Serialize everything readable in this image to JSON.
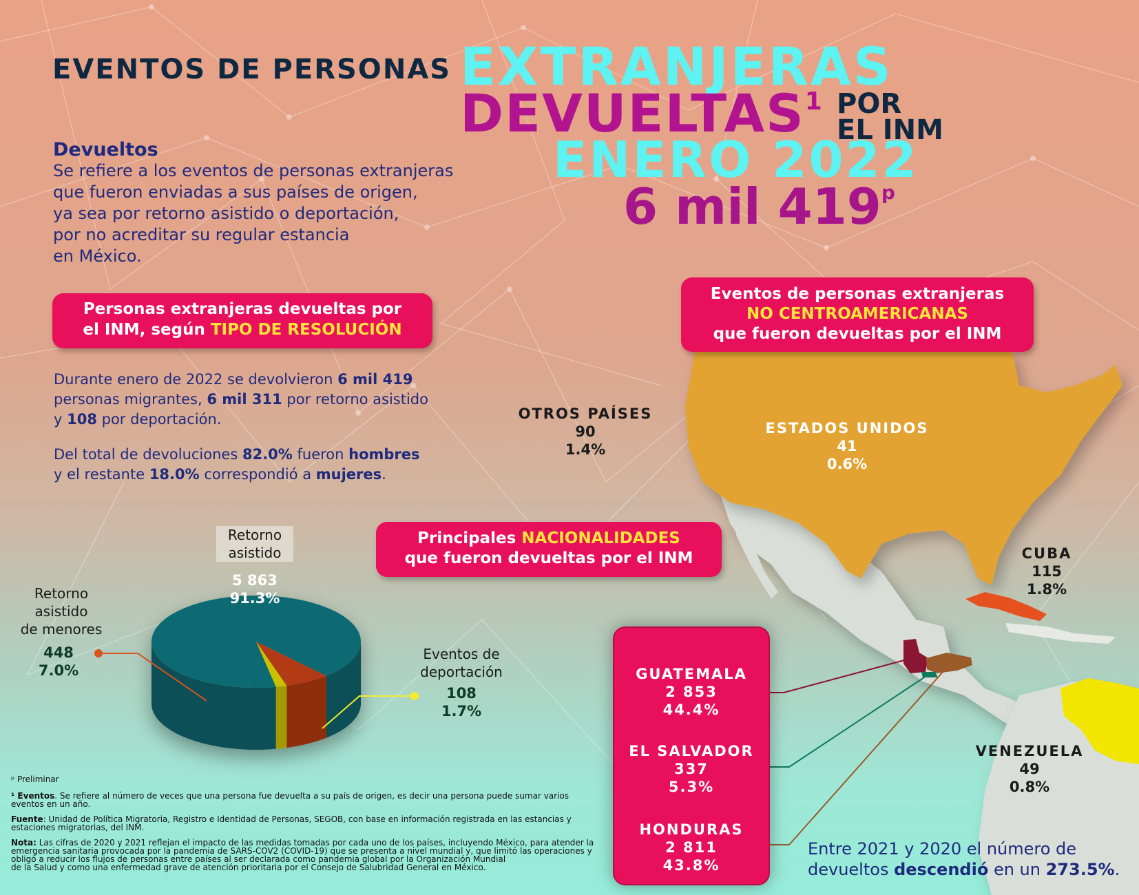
{
  "title": {
    "line1": "EVENTOS DE PERSONAS",
    "line2": "EXTRANJERAS",
    "line3": "DEVUELTAS",
    "line3_sup": "1",
    "por": "POR",
    "el_inm": "EL INM",
    "line4": "ENERO 2022",
    "total": "6 mil 419",
    "total_sup": "p"
  },
  "definition": {
    "heading": "Devueltos",
    "lines": [
      "Se refiere a los eventos de personas extranjeras",
      "que fueron enviadas a sus países de origen,",
      "ya sea por retorno asistido o deportación,",
      "por no acreditar su regular estancia",
      "en México."
    ]
  },
  "pill_resolution": {
    "line1": "Personas extranjeras devueltas por",
    "line2_a": "el INM, según ",
    "line2_b": "TIPO DE RESOLUCIÓN"
  },
  "summary": {
    "p1": [
      "Durante enero de 2022 se devolvieron ",
      "6 mil 419"
    ],
    "p2": [
      "personas migrantes, ",
      "6 mil 311",
      " por retorno asistido"
    ],
    "p3": [
      "y ",
      "108",
      " por deportación."
    ],
    "p4": [
      "Del total de devoluciones ",
      "82.0%",
      " fueron ",
      "hombres"
    ],
    "p5": [
      "y el restante ",
      "18.0%",
      " correspondió a ",
      "mujeres",
      "."
    ]
  },
  "pill_nonca": {
    "line1": "Eventos de personas extranjeras",
    "line2": "NO CENTROAMERICANAS",
    "line3": "que fueron devueltas por el INM"
  },
  "pill_nat": {
    "line1_a": "Principales ",
    "line1_b": "NACIONALIDADES",
    "line2": "que fueron devueltas por el INM"
  },
  "pie_labels": {
    "retorno": {
      "label1": "Retorno",
      "label2": "asistido",
      "value": "5 863",
      "pct": "91.3%"
    },
    "menores": {
      "label1": "Retorno",
      "label2": "asistido",
      "label3": "de menores",
      "value": "448",
      "pct": "7.0%"
    },
    "deport": {
      "label1": "Eventos de",
      "label2": "deportación",
      "value": "108",
      "pct": "1.7%"
    }
  },
  "map_labels": {
    "otros": {
      "name": "OTROS PAÍSES",
      "value": "90",
      "pct": "1.4%"
    },
    "eu": {
      "name": "ESTADOS UNIDOS",
      "value": "41",
      "pct": "0.6%"
    },
    "cuba": {
      "name": "CUBA",
      "value": "115",
      "pct": "1.8%"
    },
    "venezuela": {
      "name": "VENEZUELA",
      "value": "49",
      "pct": "0.8%"
    }
  },
  "ca_box": {
    "guatemala": {
      "name": "GUATEMALA",
      "value": "2 853",
      "pct": "44.4%"
    },
    "elsalvador": {
      "name": "EL SALVADOR",
      "value": "337",
      "pct": "5.3%"
    },
    "honduras": {
      "name": "HONDURAS",
      "value": "2 811",
      "pct": "43.8%"
    }
  },
  "trend": {
    "line1": "Entre 2021 y 2020 el número de",
    "line2_a": "devueltos ",
    "line2_b": "descendió",
    "line2_c": " en un ",
    "line2_d": "273.5%",
    "line2_e": "."
  },
  "footnotes": {
    "preliminar": "ᵖ Preliminar",
    "eventos_label": "¹ Eventos",
    "eventos_text1": ". Se refiere al número de veces que una persona fue devuelta a su país de origen,  es decir una persona puede sumar varios",
    "eventos_text2": "eventos en un año.",
    "fuente_label": "Fuente",
    "fuente_text1": ": Unidad de Política Migratoria, Registro e Identidad de Personas, SEGOB, con base en información registrada en las estancias y",
    "fuente_text2": "estaciones migratorias, del INM.",
    "nota_label": "Nota:",
    "nota_text1": " Las cifras de 2020 y 2021 reflejan el impacto de las medidas tomadas por cada uno de los países, incluyendo México, para atender la",
    "nota_text2": "emergencia sanitaria provocada por la pandemia de SARS-COV2 (COVID-19) que se presenta a nivel mundial y, que limitó las operaciones y",
    "nota_text3": "obligó a reducir los flujos de personas entre países al ser declarada como pandemia global por la Organización Mundial",
    "nota_text4": "de la Salud y como una enfermedad grave de atención prioritaria por el Consejo de Salubridad General en México."
  },
  "colors": {
    "navy": "#1f2a7e",
    "cyan": "#5cf3f2",
    "magenta": "#b2148f",
    "pink_pill": "#e8105a",
    "highlight": "#ffe43a",
    "pie_teal": "#0f6b72",
    "pie_orange": "#b23a14",
    "pie_yellow": "#c9c000",
    "usa": "#e2a332",
    "cuba": "#e5521f",
    "venezuela": "#f2e600",
    "guatemala": "#8a1633",
    "honduras": "#9a5a2a",
    "elsalvador": "#0d7a5e"
  },
  "chart_data": {
    "type": "pie",
    "title": "Personas extranjeras devueltas por el INM, según TIPO DE RESOLUCIÓN",
    "categories": [
      "Retorno asistido",
      "Retorno asistido de menores",
      "Eventos de deportación"
    ],
    "values": [
      5863,
      448,
      108
    ],
    "percentages": [
      91.3,
      7.0,
      1.7
    ]
  }
}
